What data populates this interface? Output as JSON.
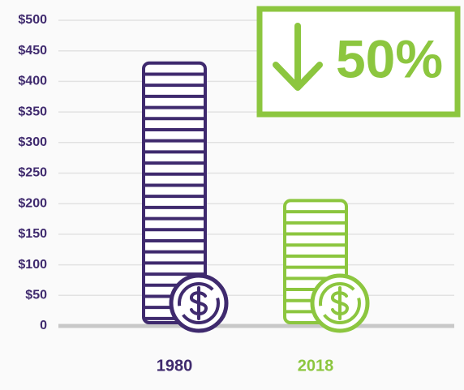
{
  "chart_data": {
    "type": "bar",
    "categories": [
      "1980",
      "2018"
    ],
    "series": [
      {
        "values": [
          430,
          205
        ]
      }
    ],
    "colors": [
      "#3f2a6e",
      "#8cc63f"
    ],
    "ylim": [
      0,
      500
    ],
    "yticks": [
      0,
      {
        "value": 50,
        "label": "$50"
      },
      {
        "value": 100,
        "label": "$100"
      },
      {
        "value": 150,
        "label": "$150"
      },
      {
        "value": 200,
        "label": "$200"
      },
      {
        "value": 250,
        "label": "$250"
      },
      {
        "value": 300,
        "label": "$300"
      },
      {
        "value": 350,
        "label": "$350"
      },
      {
        "value": 400,
        "label": "$400"
      },
      {
        "value": 450,
        "label": "$450"
      },
      {
        "value": 500,
        "label": "$500"
      }
    ],
    "grid": true,
    "annotation": "50%"
  }
}
